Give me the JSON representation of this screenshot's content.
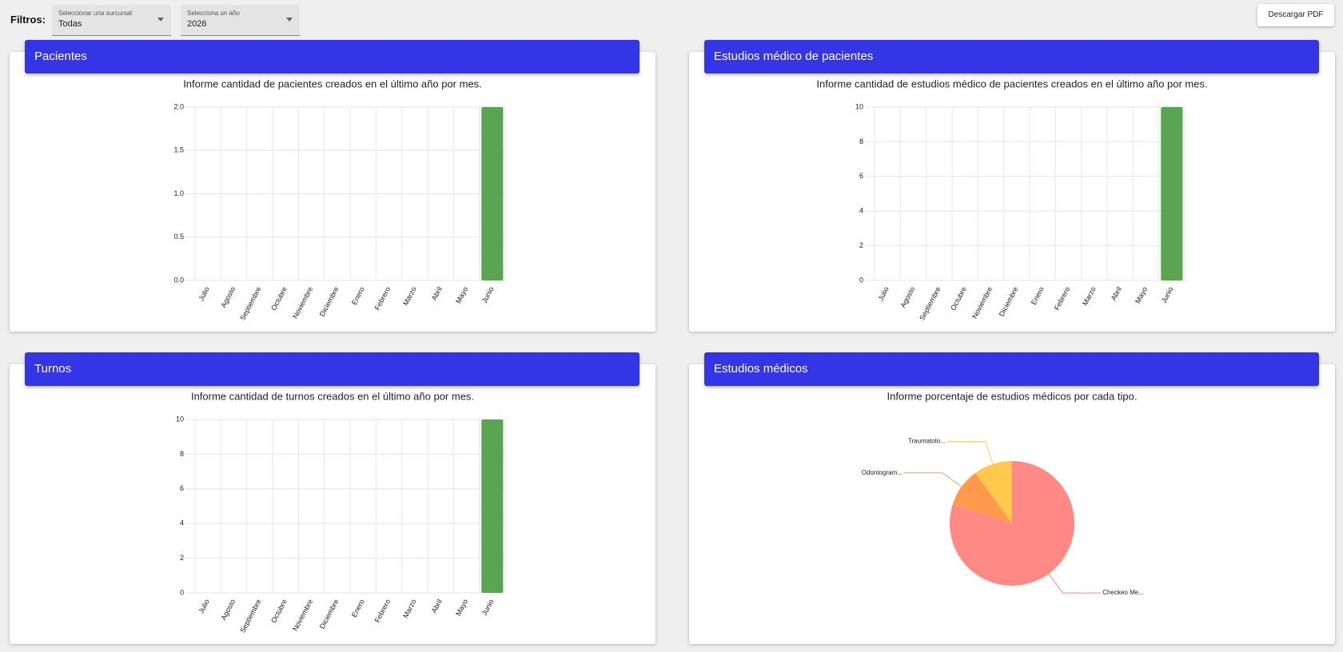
{
  "filters": {
    "label": "Filtros:",
    "selects": [
      {
        "label": "Seleccionar una surcursal",
        "value": "Todas"
      },
      {
        "label": "Selecciona un año",
        "value": "2026"
      }
    ],
    "button": "Descargar PDF"
  },
  "panels": [
    {
      "title": "Pacientes",
      "chart_data": {
        "type": "bar",
        "title": "Informe cantidad de pacientes creados en el último año por mes.",
        "categories": [
          "Julio",
          "Agosto",
          "Septiembre",
          "Octubre",
          "Noviembre",
          "Diciembre",
          "Enero",
          "Febrero",
          "Marzo",
          "Abril",
          "Mayo",
          "Junio"
        ],
        "values": [
          0,
          0,
          0,
          0,
          0,
          0,
          0,
          0,
          0,
          0,
          0,
          2
        ],
        "color": "#5aa454",
        "ylim": [
          0,
          2
        ],
        "yticks": [
          {
            "value": 0,
            "label": "0.0"
          },
          0.5,
          {
            "value": 1,
            "label": "1.0"
          },
          1.5,
          {
            "value": 2,
            "label": "2.0"
          }
        ],
        "grid": true
      }
    },
    {
      "title": "Estudios médico de pacientes",
      "chart_data": {
        "type": "bar",
        "title": "Informe cantidad de estudios médico de pacientes creados en el último año por mes.",
        "categories": [
          "Julio",
          "Agosto",
          "Septiembre",
          "Octubre",
          "Noviembre",
          "Diciembre",
          "Enero",
          "Febrero",
          "Marzo",
          "Abril",
          "Mayo",
          "Junio"
        ],
        "values": [
          0,
          0,
          0,
          0,
          0,
          0,
          0,
          0,
          0,
          0,
          0,
          10
        ],
        "color": "#5aa454",
        "ylim": [
          0,
          10
        ],
        "yticks": [
          0,
          2,
          4,
          6,
          8,
          10
        ],
        "grid": true
      }
    },
    {
      "title": "Turnos",
      "chart_data": {
        "type": "bar",
        "title": "Informe cantidad de turnos creados en el último año por mes.",
        "categories": [
          "Julio",
          "Agosto",
          "Septiembre",
          "Octubre",
          "Noviembre",
          "Diciembre",
          "Enero",
          "Febrero",
          "Marzo",
          "Abril",
          "Mayo",
          "Junio"
        ],
        "values": [
          0,
          0,
          0,
          0,
          0,
          0,
          0,
          0,
          0,
          0,
          0,
          10
        ],
        "color": "#5aa454",
        "ylim": [
          0,
          10
        ],
        "yticks": [
          0,
          2,
          4,
          6,
          8,
          10
        ],
        "grid": true
      }
    },
    {
      "title": "Estudios médicos",
      "chart_data": {
        "type": "pie",
        "title": "Informe porcentaje de estudios médicos por cada tipo.",
        "categories": [
          "Checkeo Me...",
          "Odontogram...",
          "Traumatolo..."
        ],
        "values": [
          80,
          10,
          10
        ],
        "colors": [
          "#ff8a85",
          "#ff9a4d",
          "#ffc94d"
        ]
      }
    }
  ]
}
